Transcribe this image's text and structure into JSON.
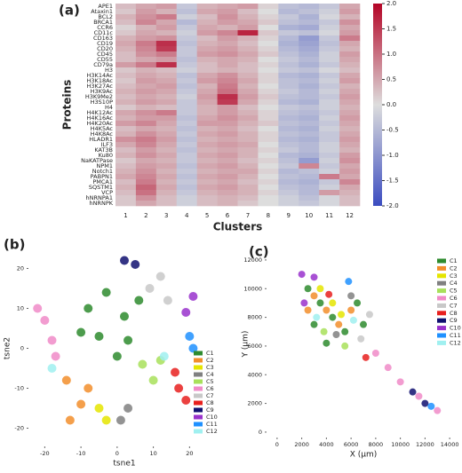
{
  "chart_data": [
    {
      "type": "heatmap",
      "panel_label": "(a)",
      "x_label": "Clusters",
      "y_label": "Proteins",
      "categories": [
        "1",
        "2",
        "3",
        "4",
        "5",
        "6",
        "7",
        "8",
        "9",
        "10",
        "11",
        "12"
      ],
      "rows": [
        "APE1",
        "Ataxin1",
        "BCL2",
        "BRCA1",
        "CCR6",
        "CD11c",
        "CD163",
        "CD19",
        "CD20",
        "CD45",
        "CD55",
        "CD79a",
        "H3",
        "H3K14Ac",
        "H3K18Ac",
        "H3K27Ac",
        "H3K9Ac",
        "H3K9Me2",
        "H3S10P",
        "H4",
        "H4K12Ac",
        "H4K16Ac",
        "H4K20Ac",
        "H4K5Ac",
        "H4K8Ac",
        "HLADR1",
        "ILF3",
        "KAT3B",
        "Ku80",
        "NaKATPase",
        "NPM1",
        "Notch1",
        "PABPN1",
        "PMCA1",
        "SQSTM1",
        "VCP",
        "hNRNPA1",
        "hNRNPK"
      ],
      "values": [
        [
          0.3,
          0.5,
          0.6,
          -0.3,
          0.4,
          0.5,
          0.6,
          0.1,
          -0.4,
          -0.5,
          -0.3,
          0.5
        ],
        [
          0.2,
          0.6,
          0.4,
          -0.4,
          0.5,
          0.6,
          0.3,
          0.0,
          -0.5,
          -0.4,
          -0.2,
          0.6
        ],
        [
          0.4,
          0.7,
          0.9,
          -0.2,
          0.3,
          0.7,
          0.4,
          0.1,
          -0.3,
          -0.6,
          -0.1,
          0.4
        ],
        [
          0.3,
          0.8,
          0.5,
          -0.5,
          0.4,
          0.6,
          0.5,
          0.2,
          -0.4,
          -0.5,
          -0.3,
          0.7
        ],
        [
          0.1,
          0.4,
          0.6,
          -0.3,
          0.5,
          0.4,
          0.6,
          0.0,
          -0.6,
          -0.7,
          -0.2,
          0.5
        ],
        [
          0.2,
          0.5,
          0.4,
          -0.2,
          0.6,
          0.8,
          1.7,
          0.2,
          -0.3,
          -0.4,
          -0.1,
          0.6
        ],
        [
          0.4,
          0.6,
          0.7,
          -0.3,
          0.3,
          0.6,
          0.4,
          0.1,
          -0.5,
          -0.9,
          -0.3,
          0.9
        ],
        [
          0.5,
          0.9,
          1.6,
          -0.4,
          0.4,
          0.5,
          0.3,
          0.0,
          -0.6,
          -0.8,
          -0.4,
          0.5
        ],
        [
          0.4,
          0.8,
          1.5,
          -0.3,
          0.5,
          0.6,
          0.4,
          0.1,
          -0.5,
          -0.7,
          -0.3,
          0.4
        ],
        [
          0.3,
          0.7,
          0.9,
          -0.3,
          0.6,
          0.7,
          0.5,
          0.2,
          -0.4,
          -0.6,
          -0.2,
          0.6
        ],
        [
          0.3,
          0.5,
          0.6,
          -0.4,
          0.4,
          0.5,
          0.4,
          0.0,
          -0.3,
          -0.5,
          -0.2,
          0.5
        ],
        [
          0.6,
          0.9,
          1.6,
          -0.3,
          0.3,
          0.5,
          0.3,
          0.1,
          -0.4,
          -0.6,
          -0.3,
          0.4
        ],
        [
          0.2,
          0.4,
          0.3,
          -0.2,
          0.3,
          0.4,
          0.3,
          0.0,
          -0.3,
          -0.4,
          -0.1,
          0.3
        ],
        [
          0.3,
          0.5,
          0.4,
          -0.4,
          0.5,
          0.7,
          0.4,
          0.1,
          -0.5,
          -0.6,
          -0.3,
          0.5
        ],
        [
          0.2,
          0.6,
          0.5,
          -0.3,
          0.6,
          0.8,
          0.5,
          0.1,
          -0.4,
          -0.5,
          -0.2,
          0.6
        ],
        [
          0.3,
          0.5,
          0.6,
          -0.4,
          0.4,
          0.9,
          0.4,
          0.0,
          -0.4,
          -0.6,
          -0.3,
          0.4
        ],
        [
          0.4,
          0.6,
          0.5,
          -0.3,
          0.5,
          1.0,
          0.5,
          0.1,
          -0.3,
          -0.5,
          -0.2,
          0.5
        ],
        [
          0.3,
          0.5,
          0.4,
          -0.2,
          0.6,
          1.6,
          0.6,
          0.2,
          -0.4,
          -0.5,
          -0.3,
          0.6
        ],
        [
          0.4,
          0.6,
          0.5,
          -0.3,
          0.5,
          1.5,
          0.5,
          0.1,
          -0.5,
          -0.6,
          -0.2,
          0.5
        ],
        [
          0.2,
          0.4,
          0.3,
          -0.3,
          0.4,
          0.6,
          0.3,
          0.0,
          -0.3,
          -0.4,
          -0.2,
          0.4
        ],
        [
          0.5,
          0.7,
          0.9,
          -0.3,
          0.4,
          0.6,
          0.4,
          0.1,
          -0.4,
          -0.5,
          -0.3,
          0.5
        ],
        [
          0.4,
          0.6,
          0.6,
          -0.4,
          0.5,
          0.7,
          0.5,
          0.1,
          -0.5,
          -0.6,
          -0.2,
          0.6
        ],
        [
          0.6,
          0.8,
          0.5,
          -0.3,
          0.6,
          0.6,
          0.4,
          0.2,
          -0.4,
          -0.5,
          -0.3,
          0.5
        ],
        [
          0.3,
          0.5,
          0.4,
          -0.4,
          0.4,
          0.5,
          0.3,
          0.0,
          -0.5,
          -0.6,
          -0.2,
          0.4
        ],
        [
          0.4,
          0.7,
          0.5,
          -0.3,
          0.5,
          0.6,
          0.4,
          0.1,
          -0.4,
          -0.5,
          -0.3,
          0.5
        ],
        [
          0.7,
          0.9,
          0.6,
          -0.4,
          0.4,
          0.5,
          0.4,
          0.1,
          -0.5,
          -0.6,
          -0.3,
          0.6
        ],
        [
          0.5,
          0.8,
          0.5,
          -0.3,
          0.5,
          0.6,
          0.5,
          0.0,
          -0.4,
          -0.5,
          -0.2,
          0.5
        ],
        [
          0.3,
          0.6,
          0.4,
          -0.4,
          0.4,
          0.5,
          0.4,
          0.1,
          -0.3,
          -0.5,
          -0.2,
          0.4
        ],
        [
          0.4,
          0.7,
          0.5,
          -0.3,
          0.5,
          0.6,
          0.4,
          0.0,
          -0.5,
          -0.6,
          -0.3,
          0.6
        ],
        [
          0.2,
          0.5,
          0.4,
          -0.3,
          0.4,
          0.5,
          0.3,
          0.1,
          -0.4,
          -0.9,
          -0.2,
          0.7
        ],
        [
          0.3,
          0.6,
          0.5,
          -0.4,
          0.5,
          0.6,
          0.4,
          0.0,
          -0.3,
          0.8,
          -0.3,
          0.5
        ],
        [
          0.4,
          0.7,
          0.4,
          -0.3,
          0.4,
          0.5,
          0.5,
          0.1,
          -0.5,
          -0.4,
          -0.2,
          0.6
        ],
        [
          0.5,
          0.8,
          0.5,
          -0.4,
          0.5,
          0.6,
          0.4,
          0.0,
          -0.4,
          -0.5,
          0.9,
          0.5
        ],
        [
          0.3,
          0.9,
          0.4,
          -0.3,
          0.4,
          0.5,
          0.3,
          0.1,
          -0.5,
          -0.6,
          -0.3,
          0.8
        ],
        [
          0.4,
          1.1,
          0.5,
          -0.4,
          0.5,
          0.6,
          0.4,
          0.0,
          -0.4,
          -0.5,
          -0.2,
          0.5
        ],
        [
          0.3,
          1.0,
          0.4,
          -0.3,
          0.4,
          0.5,
          0.4,
          0.1,
          -0.3,
          -0.5,
          0.6,
          0.4
        ],
        [
          0.2,
          0.7,
          0.3,
          -0.2,
          0.3,
          0.4,
          0.3,
          0.0,
          -0.2,
          -0.4,
          -0.1,
          0.3
        ],
        [
          0.2,
          0.5,
          0.3,
          -0.2,
          0.3,
          0.4,
          0.2,
          0.0,
          -0.2,
          -0.3,
          -0.1,
          0.3
        ]
      ],
      "colormap": [
        "#3b4cc0",
        "#dddddd",
        "#b40426"
      ],
      "clim": [
        -2,
        2
      ],
      "cticks": [
        {
          "value": 2,
          "label": "2.0"
        },
        1.5,
        {
          "value": 1,
          "label": "1.0"
        },
        0.5,
        {
          "value": 0,
          "label": "0.0"
        },
        -0.5,
        {
          "value": -1,
          "label": "-1.0"
        },
        -1.5,
        {
          "value": -2,
          "label": "-2.0"
        }
      ]
    },
    {
      "type": "scatter",
      "panel_label": "(b)",
      "x_label": "tsne1",
      "y_label": "tsne2",
      "xlim": [
        -25,
        29
      ],
      "ylim": [
        -25,
        25
      ],
      "xticks": [
        -20,
        -10,
        0,
        10,
        20
      ],
      "yticks": [
        -20,
        -10,
        0,
        10,
        20
      ],
      "series": [
        {
          "name": "C1",
          "color": "#2e8b2e",
          "x": [
            -8,
            -3,
            2,
            -5,
            3,
            -10,
            0,
            6
          ],
          "y": [
            10,
            14,
            8,
            3,
            2,
            4,
            -2,
            12
          ]
        },
        {
          "name": "C2",
          "color": "#f28e2b",
          "x": [
            -14,
            -10,
            -13,
            -8
          ],
          "y": [
            -8,
            -14,
            -18,
            -10
          ]
        },
        {
          "name": "C3",
          "color": "#e5e500",
          "x": [
            -5,
            -3
          ],
          "y": [
            -15,
            -18
          ]
        },
        {
          "name": "C4",
          "color": "#808080",
          "x": [
            1,
            3
          ],
          "y": [
            -18,
            -15
          ]
        },
        {
          "name": "C5",
          "color": "#a8e05a",
          "x": [
            7,
            10,
            12
          ],
          "y": [
            -4,
            -8,
            -3
          ]
        },
        {
          "name": "C6",
          "color": "#f08bc8",
          "x": [
            -20,
            -18,
            -22,
            -17
          ],
          "y": [
            7,
            2,
            10,
            -2
          ]
        },
        {
          "name": "C7",
          "color": "#c8c8c8",
          "x": [
            9,
            12,
            14
          ],
          "y": [
            15,
            18,
            12
          ]
        },
        {
          "name": "C8",
          "color": "#e8201e",
          "x": [
            17,
            16,
            19
          ],
          "y": [
            -10,
            -6,
            -13
          ]
        },
        {
          "name": "C9",
          "color": "#101070",
          "x": [
            2,
            5
          ],
          "y": [
            22,
            21
          ]
        },
        {
          "name": "C10",
          "color": "#9932cc",
          "x": [
            21,
            19
          ],
          "y": [
            13,
            9
          ]
        },
        {
          "name": "C11",
          "color": "#1e90ff",
          "x": [
            20,
            21
          ],
          "y": [
            3,
            0
          ]
        },
        {
          "name": "C12",
          "color": "#a0f0f0",
          "x": [
            13,
            -18
          ],
          "y": [
            -2,
            -5
          ]
        }
      ]
    },
    {
      "type": "scatter",
      "panel_label": "(c)",
      "x_label": "X (μm)",
      "y_label": "Y (μm)",
      "xlim": [
        -1000,
        15000
      ],
      "ylim": [
        -500,
        12800
      ],
      "xticks": [
        0,
        2000,
        4000,
        6000,
        8000,
        10000,
        12000,
        14000
      ],
      "yticks": [
        0,
        2000,
        4000,
        6000,
        8000,
        10000,
        12000
      ],
      "series": [
        {
          "name": "C1",
          "color": "#2e8b2e",
          "x": [
            2500,
            3500,
            4500,
            5500,
            3000,
            6500,
            7000,
            4000
          ],
          "y": [
            10000,
            9000,
            8000,
            7000,
            7500,
            9000,
            7500,
            6200
          ]
        },
        {
          "name": "C2",
          "color": "#f28e2b",
          "x": [
            3000,
            4000,
            2500,
            5000,
            6000
          ],
          "y": [
            9500,
            8500,
            8500,
            7500,
            8500
          ]
        },
        {
          "name": "C3",
          "color": "#e5e500",
          "x": [
            3500,
            4500,
            5200
          ],
          "y": [
            10000,
            9000,
            8200
          ]
        },
        {
          "name": "C4",
          "color": "#808080",
          "x": [
            6000,
            4800
          ],
          "y": [
            9500,
            6800
          ]
        },
        {
          "name": "C5",
          "color": "#a8e05a",
          "x": [
            5500,
            3800
          ],
          "y": [
            6000,
            7000
          ]
        },
        {
          "name": "C6",
          "color": "#f08bc8",
          "x": [
            9000,
            10000,
            11500,
            13000,
            8000
          ],
          "y": [
            4500,
            3500,
            2500,
            1500,
            5500
          ]
        },
        {
          "name": "C7",
          "color": "#c8c8c8",
          "x": [
            7500,
            6800
          ],
          "y": [
            8200,
            6500
          ]
        },
        {
          "name": "C8",
          "color": "#e8201e",
          "x": [
            4200,
            7200
          ],
          "y": [
            9600,
            5200
          ]
        },
        {
          "name": "C9",
          "color": "#101070",
          "x": [
            12000,
            11000
          ],
          "y": [
            2000,
            2800
          ]
        },
        {
          "name": "C10",
          "color": "#9932cc",
          "x": [
            2000,
            2200,
            3000
          ],
          "y": [
            11000,
            9000,
            10800
          ]
        },
        {
          "name": "C11",
          "color": "#1e90ff",
          "x": [
            5800,
            12500
          ],
          "y": [
            10500,
            1800
          ]
        },
        {
          "name": "C12",
          "color": "#a0f0f0",
          "x": [
            3200,
            6200
          ],
          "y": [
            8000,
            7800
          ]
        }
      ]
    }
  ]
}
